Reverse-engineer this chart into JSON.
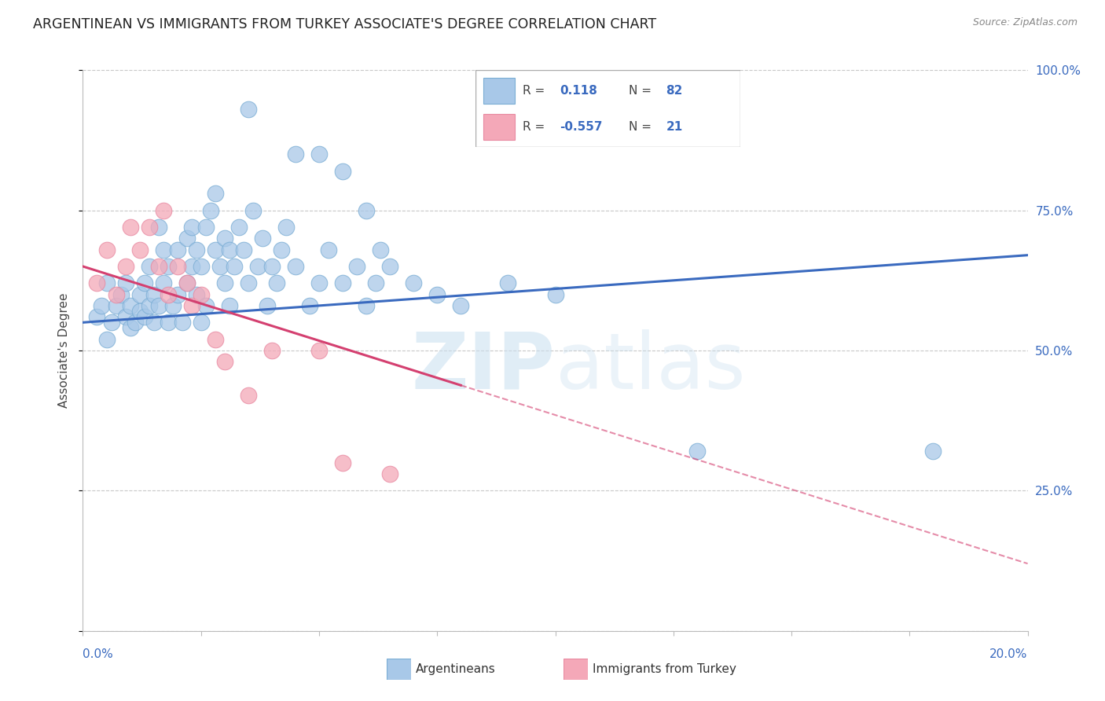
{
  "title": "ARGENTINEAN VS IMMIGRANTS FROM TURKEY ASSOCIATE'S DEGREE CORRELATION CHART",
  "source": "Source: ZipAtlas.com",
  "ylabel": "Associate's Degree",
  "xlim": [
    0.0,
    20.0
  ],
  "ylim": [
    0.0,
    100.0
  ],
  "yticks": [
    0,
    25,
    50,
    75,
    100
  ],
  "ytick_labels": [
    "",
    "25.0%",
    "50.0%",
    "75.0%",
    "100.0%"
  ],
  "watermark": "ZIPatlas",
  "blue_R": "0.118",
  "blue_N": "82",
  "pink_R": "-0.557",
  "pink_N": "21",
  "blue_color": "#a8c8e8",
  "pink_color": "#f4a8b8",
  "blue_edge_color": "#7aadd4",
  "pink_edge_color": "#e888a0",
  "blue_line_color": "#3a6abf",
  "pink_line_color": "#d44070",
  "blue_scatter": [
    [
      0.3,
      56
    ],
    [
      0.4,
      58
    ],
    [
      0.5,
      52
    ],
    [
      0.5,
      62
    ],
    [
      0.6,
      55
    ],
    [
      0.7,
      58
    ],
    [
      0.8,
      60
    ],
    [
      0.9,
      56
    ],
    [
      0.9,
      62
    ],
    [
      1.0,
      54
    ],
    [
      1.0,
      58
    ],
    [
      1.1,
      55
    ],
    [
      1.2,
      57
    ],
    [
      1.2,
      60
    ],
    [
      1.3,
      56
    ],
    [
      1.3,
      62
    ],
    [
      1.4,
      58
    ],
    [
      1.4,
      65
    ],
    [
      1.5,
      55
    ],
    [
      1.5,
      60
    ],
    [
      1.6,
      58
    ],
    [
      1.6,
      72
    ],
    [
      1.7,
      62
    ],
    [
      1.7,
      68
    ],
    [
      1.8,
      55
    ],
    [
      1.8,
      65
    ],
    [
      1.9,
      58
    ],
    [
      2.0,
      60
    ],
    [
      2.0,
      68
    ],
    [
      2.1,
      55
    ],
    [
      2.2,
      62
    ],
    [
      2.2,
      70
    ],
    [
      2.3,
      65
    ],
    [
      2.3,
      72
    ],
    [
      2.4,
      60
    ],
    [
      2.4,
      68
    ],
    [
      2.5,
      55
    ],
    [
      2.5,
      65
    ],
    [
      2.6,
      58
    ],
    [
      2.6,
      72
    ],
    [
      2.7,
      75
    ],
    [
      2.8,
      68
    ],
    [
      2.8,
      78
    ],
    [
      2.9,
      65
    ],
    [
      3.0,
      62
    ],
    [
      3.0,
      70
    ],
    [
      3.1,
      58
    ],
    [
      3.1,
      68
    ],
    [
      3.2,
      65
    ],
    [
      3.3,
      72
    ],
    [
      3.4,
      68
    ],
    [
      3.5,
      62
    ],
    [
      3.6,
      75
    ],
    [
      3.7,
      65
    ],
    [
      3.8,
      70
    ],
    [
      3.9,
      58
    ],
    [
      4.0,
      65
    ],
    [
      4.1,
      62
    ],
    [
      4.2,
      68
    ],
    [
      4.3,
      72
    ],
    [
      4.5,
      65
    ],
    [
      4.8,
      58
    ],
    [
      5.0,
      62
    ],
    [
      5.0,
      85
    ],
    [
      5.2,
      68
    ],
    [
      5.5,
      62
    ],
    [
      5.5,
      82
    ],
    [
      5.8,
      65
    ],
    [
      6.0,
      58
    ],
    [
      6.0,
      75
    ],
    [
      6.2,
      62
    ],
    [
      6.3,
      68
    ],
    [
      6.5,
      65
    ],
    [
      7.0,
      62
    ],
    [
      7.5,
      60
    ],
    [
      8.0,
      58
    ],
    [
      9.0,
      62
    ],
    [
      10.0,
      60
    ],
    [
      13.0,
      32
    ],
    [
      18.0,
      32
    ],
    [
      3.5,
      93
    ],
    [
      4.5,
      85
    ]
  ],
  "pink_scatter": [
    [
      0.3,
      62
    ],
    [
      0.5,
      68
    ],
    [
      0.7,
      60
    ],
    [
      0.9,
      65
    ],
    [
      1.0,
      72
    ],
    [
      1.2,
      68
    ],
    [
      1.4,
      72
    ],
    [
      1.6,
      65
    ],
    [
      1.7,
      75
    ],
    [
      1.8,
      60
    ],
    [
      2.0,
      65
    ],
    [
      2.2,
      62
    ],
    [
      2.3,
      58
    ],
    [
      2.5,
      60
    ],
    [
      2.8,
      52
    ],
    [
      3.0,
      48
    ],
    [
      3.5,
      42
    ],
    [
      4.0,
      50
    ],
    [
      5.0,
      50
    ],
    [
      5.5,
      30
    ],
    [
      6.5,
      28
    ]
  ],
  "blue_trend_x": [
    0.0,
    20.0
  ],
  "blue_trend_y": [
    55.0,
    67.0
  ],
  "pink_trend_x": [
    0.0,
    20.0
  ],
  "pink_trend_y": [
    65.0,
    12.0
  ],
  "pink_solid_end_x": 8.0,
  "grid_color": "#c8c8c8",
  "right_axis_color": "#3a6abf",
  "title_color": "#222222",
  "title_fontsize": 12.5,
  "source_fontsize": 9,
  "axis_label_color": "#444444"
}
